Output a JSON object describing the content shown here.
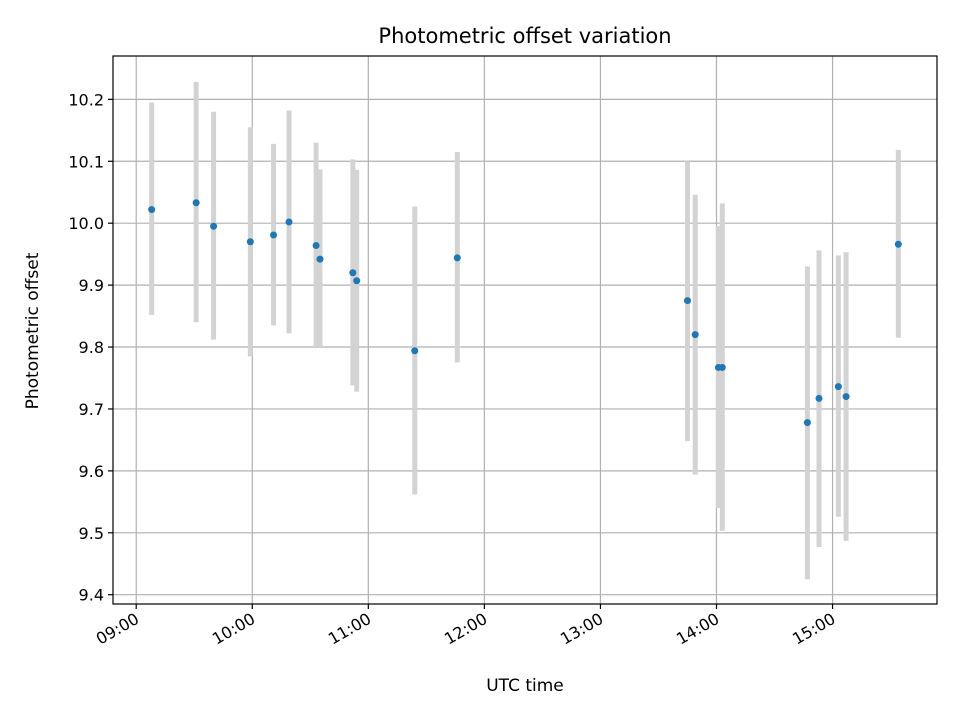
{
  "chart_data": {
    "type": "scatter",
    "title": "Photometric offset variation",
    "xlabel": "UTC time",
    "ylabel": "Photometric offset",
    "x_format": "HH:MM",
    "xlim": [
      "08:48",
      "15:54"
    ],
    "ylim": [
      9.385,
      10.27
    ],
    "x_ticks": [
      "09:00",
      "10:00",
      "11:00",
      "12:00",
      "13:00",
      "14:00",
      "15:00"
    ],
    "y_ticks": [
      "9.4",
      "9.5",
      "9.6",
      "9.7",
      "9.8",
      "9.9",
      "10.0",
      "10.1",
      "10.2"
    ],
    "grid": true,
    "marker_color": "#1f77b4",
    "errorbar_color": "#d3d3d3",
    "points": [
      {
        "x": "09:08",
        "y": 10.022,
        "lo": 9.852,
        "hi": 10.195
      },
      {
        "x": "09:31",
        "y": 10.033,
        "lo": 9.84,
        "hi": 10.228
      },
      {
        "x": "09:40",
        "y": 9.995,
        "lo": 9.812,
        "hi": 10.18
      },
      {
        "x": "09:59",
        "y": 9.97,
        "lo": 9.785,
        "hi": 10.155
      },
      {
        "x": "10:11",
        "y": 9.981,
        "lo": 9.835,
        "hi": 10.128
      },
      {
        "x": "10:19",
        "y": 10.002,
        "lo": 9.822,
        "hi": 10.182
      },
      {
        "x": "10:33",
        "y": 9.964,
        "lo": 9.8,
        "hi": 10.13
      },
      {
        "x": "10:35",
        "y": 9.942,
        "lo": 9.8,
        "hi": 10.087
      },
      {
        "x": "10:52",
        "y": 9.92,
        "lo": 9.738,
        "hi": 10.103
      },
      {
        "x": "10:54",
        "y": 9.907,
        "lo": 9.728,
        "hi": 10.086
      },
      {
        "x": "11:24",
        "y": 9.794,
        "lo": 9.562,
        "hi": 10.027
      },
      {
        "x": "11:46",
        "y": 9.944,
        "lo": 9.775,
        "hi": 10.115
      },
      {
        "x": "13:45",
        "y": 9.875,
        "lo": 9.648,
        "hi": 10.1
      },
      {
        "x": "13:49",
        "y": 9.82,
        "lo": 9.594,
        "hi": 10.046
      },
      {
        "x": "14:01",
        "y": 9.767,
        "lo": 9.54,
        "hi": 9.995
      },
      {
        "x": "14:03",
        "y": 9.767,
        "lo": 9.503,
        "hi": 10.032
      },
      {
        "x": "14:47",
        "y": 9.678,
        "lo": 9.425,
        "hi": 9.93
      },
      {
        "x": "14:53",
        "y": 9.717,
        "lo": 9.477,
        "hi": 9.956
      },
      {
        "x": "15:03",
        "y": 9.736,
        "lo": 9.526,
        "hi": 9.948
      },
      {
        "x": "15:07",
        "y": 9.72,
        "lo": 9.487,
        "hi": 9.953
      },
      {
        "x": "15:34",
        "y": 9.966,
        "lo": 9.815,
        "hi": 10.118
      }
    ]
  }
}
